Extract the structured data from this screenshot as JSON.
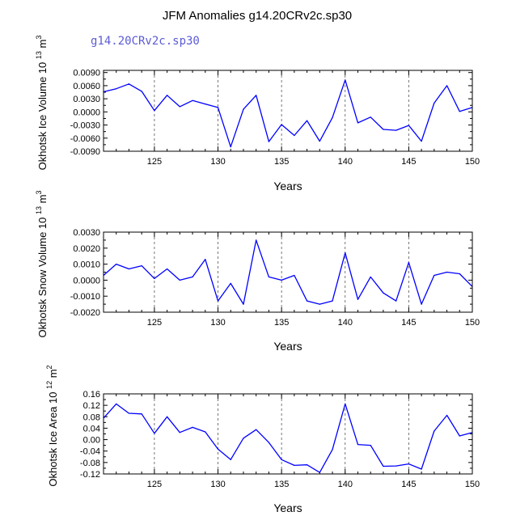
{
  "title": "JFM Anomalies g14.20CRv2c.sp30",
  "subtitle": "g14.20CRv2c.sp30",
  "colors": {
    "line": "#0000ff",
    "axis": "#000000",
    "grid": "#555555"
  },
  "chart_data": [
    {
      "type": "line",
      "ylabel_main": "Okhotsk Ice Volume 10",
      "ylabel_exp": "13",
      "ylabel_unit": "m",
      "ylabel_unit_exp": "3",
      "xlabel": "Years",
      "xlim": [
        121,
        150
      ],
      "ylim": [
        -0.009,
        0.0095
      ],
      "xticks": [
        125,
        130,
        135,
        140,
        145,
        150
      ],
      "yticks": [
        -0.009,
        -0.006,
        -0.003,
        0.0,
        0.003,
        0.006,
        0.009
      ],
      "ytick_labels": [
        "-0.0090",
        "-0.0060",
        "-0.0030",
        "0.0000",
        "0.0030",
        "0.0060",
        "0.0090"
      ],
      "vgrid": [
        125,
        130,
        135,
        140,
        145
      ],
      "x": [
        121,
        122,
        123,
        124,
        125,
        126,
        127,
        128,
        129,
        130,
        131,
        132,
        133,
        134,
        135,
        136,
        137,
        138,
        139,
        140,
        141,
        142,
        143,
        144,
        145,
        146,
        147,
        148,
        149,
        150
      ],
      "y": [
        0.0046,
        0.0053,
        0.0064,
        0.0047,
        0.0003,
        0.0038,
        0.0012,
        0.0026,
        0.0018,
        0.001,
        -0.008,
        0.0006,
        0.0038,
        -0.0068,
        -0.0029,
        -0.0054,
        -0.002,
        -0.0067,
        -0.0013,
        0.0073,
        -0.0025,
        -0.0012,
        -0.004,
        -0.0042,
        -0.0031,
        -0.0067,
        0.002,
        0.006,
        0.0001,
        0.001
      ]
    },
    {
      "type": "line",
      "ylabel_main": "Okhotsk Snow Volume 10",
      "ylabel_exp": "13",
      "ylabel_unit": "m",
      "ylabel_unit_exp": "3",
      "xlabel": "Years",
      "xlim": [
        121,
        150
      ],
      "ylim": [
        -0.002,
        0.003
      ],
      "xticks": [
        125,
        130,
        135,
        140,
        145,
        150
      ],
      "yticks": [
        -0.002,
        -0.001,
        0.0,
        0.001,
        0.002,
        0.003
      ],
      "ytick_labels": [
        "-0.0020",
        "-0.0010",
        "0.0000",
        "0.0010",
        "0.0020",
        "0.0030"
      ],
      "vgrid": [
        125,
        130,
        135,
        140,
        145
      ],
      "x": [
        121,
        122,
        123,
        124,
        125,
        126,
        127,
        128,
        129,
        130,
        131,
        132,
        133,
        134,
        135,
        136,
        137,
        138,
        139,
        140,
        141,
        142,
        143,
        144,
        145,
        146,
        147,
        148,
        149,
        150
      ],
      "y": [
        0.0003,
        0.001,
        0.0007,
        0.0009,
        0.0001,
        0.0007,
        0.0,
        0.0002,
        0.0013,
        -0.0013,
        -0.0002,
        -0.0015,
        0.0025,
        0.0002,
        0.0,
        0.0003,
        -0.0013,
        -0.0015,
        -0.0013,
        0.0017,
        -0.0012,
        0.0002,
        -0.0008,
        -0.0013,
        0.0011,
        -0.0015,
        0.0003,
        0.0005,
        0.0004,
        -0.0004
      ]
    },
    {
      "type": "line",
      "ylabel_main": "Okhotsk Ice Area 10",
      "ylabel_exp": "12",
      "ylabel_unit": "m",
      "ylabel_unit_exp": "2",
      "xlabel": "Years",
      "xlim": [
        121,
        150
      ],
      "ylim": [
        -0.12,
        0.16
      ],
      "xticks": [
        125,
        130,
        135,
        140,
        145,
        150
      ],
      "yticks": [
        -0.12,
        -0.08,
        -0.04,
        0.0,
        0.04,
        0.08,
        0.12,
        0.16
      ],
      "ytick_labels": [
        "-0.12",
        "-0.08",
        "-0.04",
        "0.00",
        "0.04",
        "0.08",
        "0.12",
        "0.16"
      ],
      "vgrid": [
        125,
        130,
        135,
        140,
        145
      ],
      "x": [
        121,
        122,
        123,
        124,
        125,
        126,
        127,
        128,
        129,
        130,
        131,
        132,
        133,
        134,
        135,
        136,
        137,
        138,
        139,
        140,
        141,
        142,
        143,
        144,
        145,
        146,
        147,
        148,
        149,
        150
      ],
      "y": [
        0.075,
        0.125,
        0.092,
        0.09,
        0.022,
        0.08,
        0.025,
        0.043,
        0.027,
        -0.033,
        -0.07,
        0.005,
        0.035,
        -0.01,
        -0.07,
        -0.09,
        -0.088,
        -0.115,
        -0.035,
        0.125,
        -0.017,
        -0.02,
        -0.093,
        -0.092,
        -0.085,
        -0.103,
        0.03,
        0.085,
        0.013,
        0.025
      ]
    }
  ]
}
